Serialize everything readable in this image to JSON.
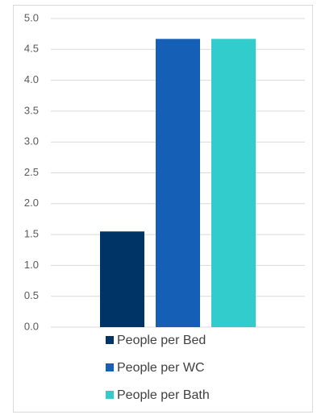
{
  "chart_data": {
    "type": "bar",
    "categories": [
      null
    ],
    "series": [
      {
        "name": "People per Bed",
        "color": "#003366",
        "values": [
          1.55
        ]
      },
      {
        "name": "People per WC",
        "color": "#1560b6",
        "values": [
          4.67
        ]
      },
      {
        "name": "People per Bath",
        "color": "#33cccc",
        "values": [
          4.67
        ]
      }
    ],
    "ylim": [
      0,
      5
    ],
    "yticks": [
      {
        "value": 0,
        "label": "0.0"
      },
      {
        "value": 0.5,
        "label": "0.5"
      },
      {
        "value": 1,
        "label": "1.0"
      },
      {
        "value": 1.5,
        "label": "1.5"
      },
      {
        "value": 2,
        "label": "2.0"
      },
      {
        "value": 2.5,
        "label": "2.5"
      },
      {
        "value": 3,
        "label": "3.0"
      },
      {
        "value": 3.5,
        "label": "3.5"
      },
      {
        "value": 4,
        "label": "4.0"
      },
      {
        "value": 4.5,
        "label": "4.5"
      },
      {
        "value": 5,
        "label": "5.0"
      }
    ],
    "grid": true,
    "legend": "bottom"
  }
}
